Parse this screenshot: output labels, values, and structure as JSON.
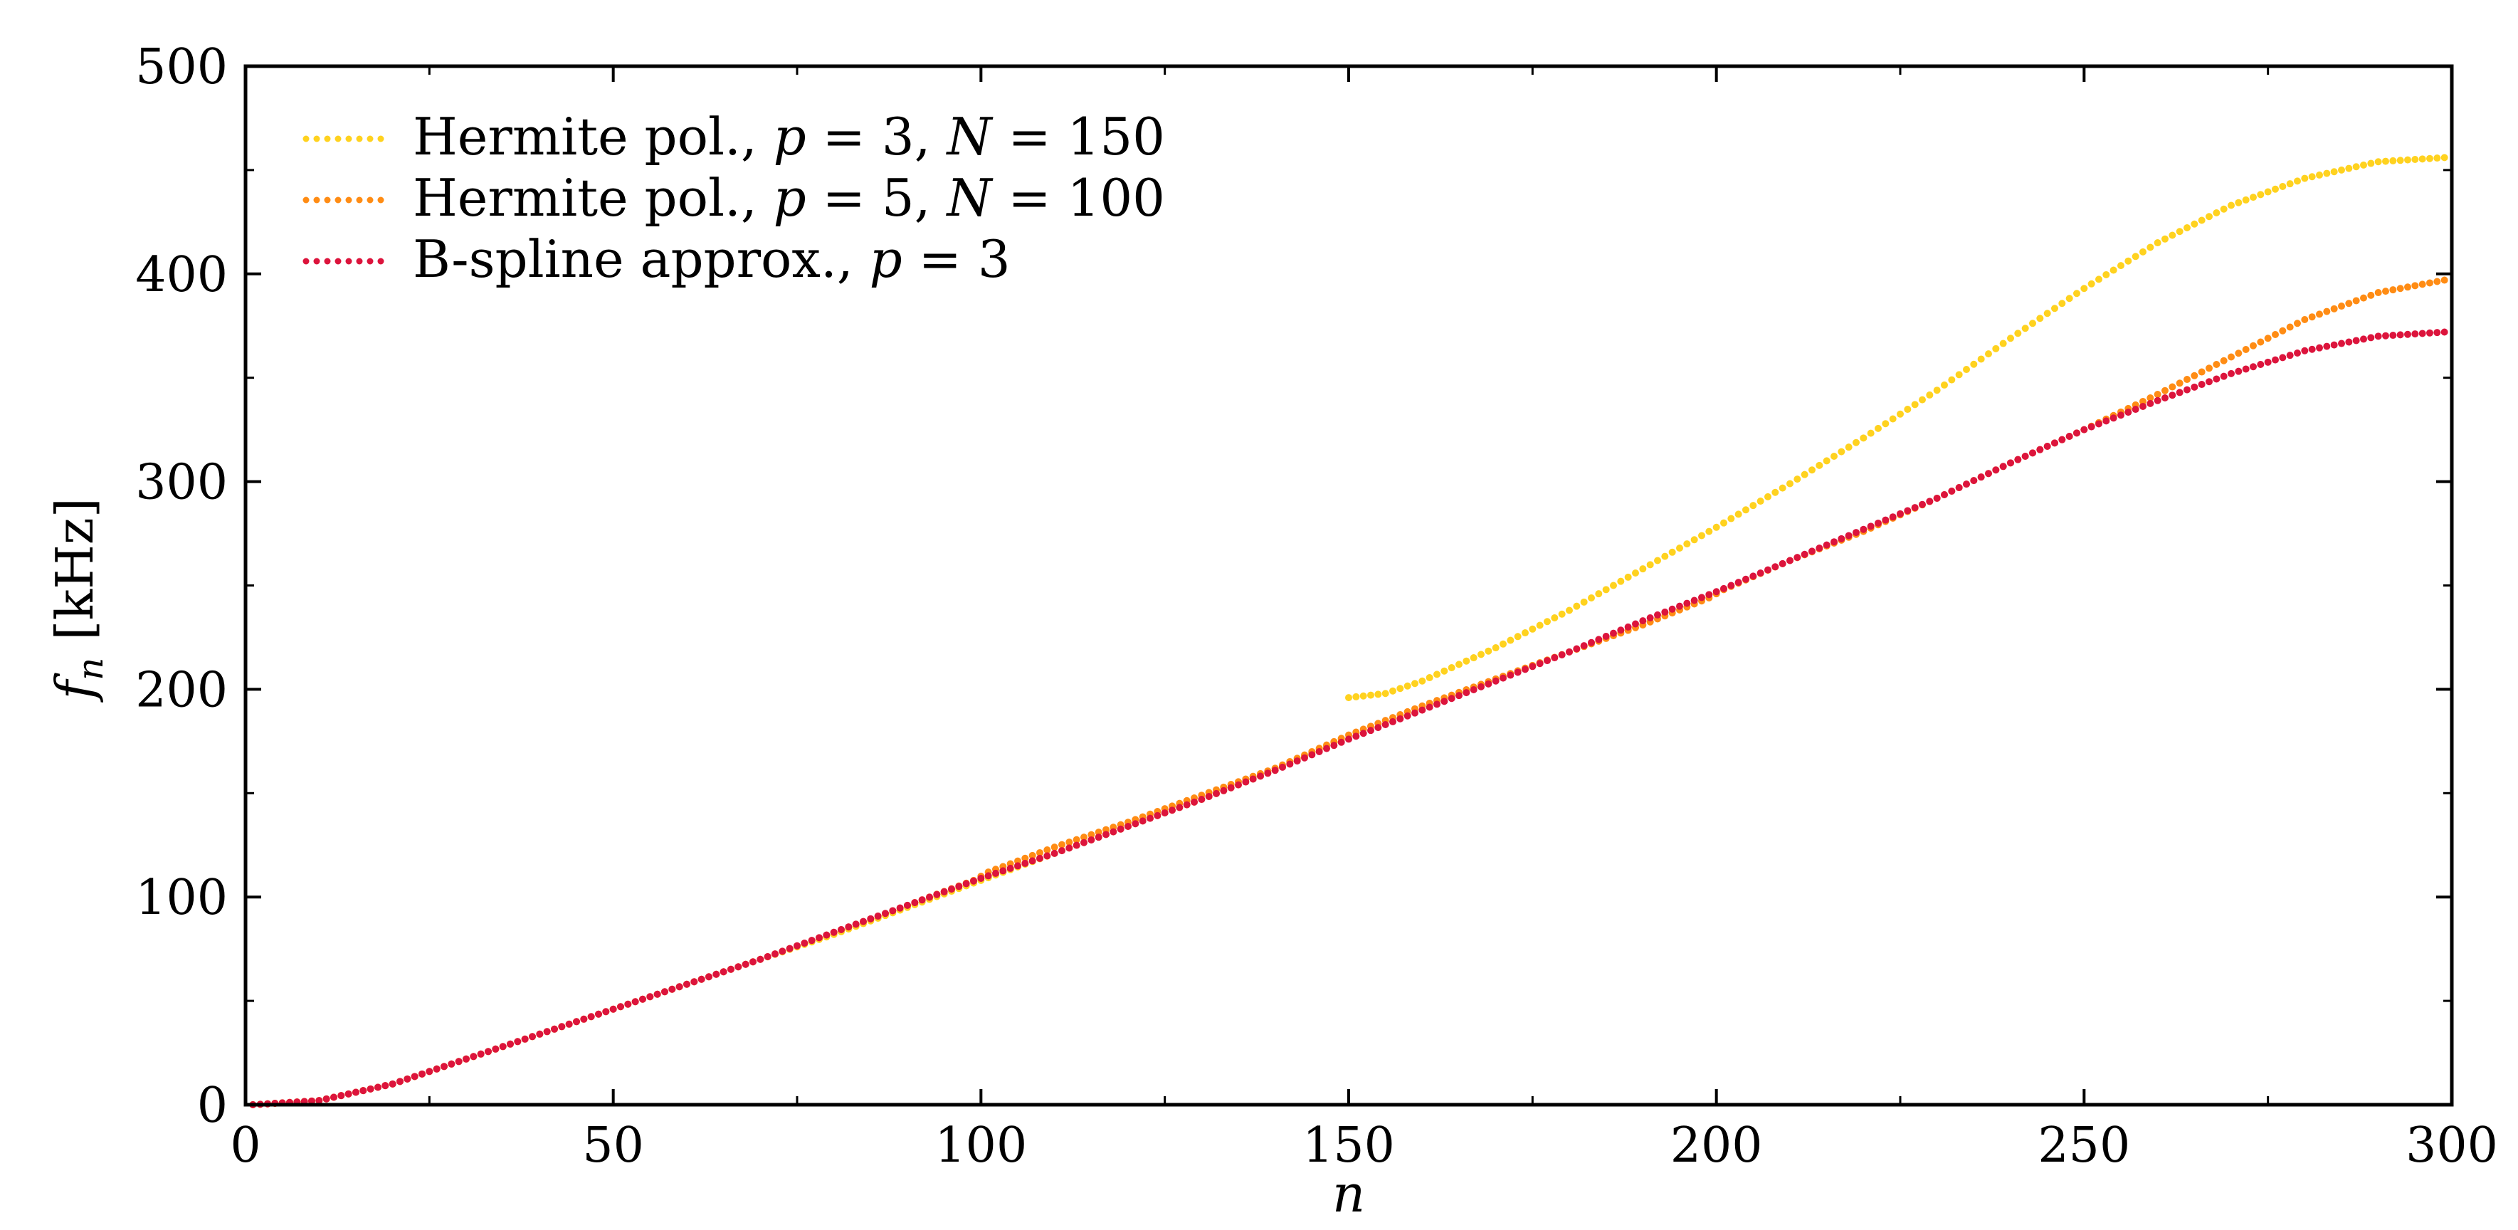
{
  "chart_data": {
    "type": "scatter",
    "xlabel": "n",
    "ylabel": "f",
    "ylabel_sub": "n",
    "ylabel_unit": "[kHz]",
    "xlim": [
      0,
      300
    ],
    "ylim": [
      0,
      500
    ],
    "x_ticks": [
      0,
      50,
      100,
      150,
      200,
      250,
      300
    ],
    "x_tick_labels": [
      "0",
      "50",
      "100",
      "150",
      "200",
      "250",
      "300"
    ],
    "y_ticks": [
      0,
      100,
      200,
      300,
      400,
      500
    ],
    "y_tick_labels": [
      "0",
      "100",
      "200",
      "300",
      "400",
      "500"
    ],
    "x_minor_step": 25,
    "y_minor_step": 50,
    "grid": false,
    "legend_position": "top-left",
    "series": [
      {
        "name": "Hermite pol., p = 3, N = 150",
        "color": "#ffd21f",
        "points": [
          [
            1,
            0
          ],
          [
            10,
            2
          ],
          [
            20,
            10
          ],
          [
            30,
            22
          ],
          [
            40,
            34
          ],
          [
            50,
            46
          ],
          [
            60,
            58
          ],
          [
            70,
            70
          ],
          [
            80,
            82
          ],
          [
            90,
            95
          ],
          [
            100,
            108
          ],
          [
            110,
            121
          ],
          [
            120,
            134
          ],
          [
            130,
            147
          ],
          [
            140,
            161
          ],
          [
            149,
            176
          ],
          [
            150,
            196
          ],
          [
            155,
            198
          ],
          [
            160,
            204
          ],
          [
            170,
            220
          ],
          [
            180,
            238
          ],
          [
            190,
            258
          ],
          [
            200,
            278
          ],
          [
            210,
            299
          ],
          [
            220,
            321
          ],
          [
            230,
            344
          ],
          [
            240,
            369
          ],
          [
            250,
            393
          ],
          [
            260,
            415
          ],
          [
            270,
            433
          ],
          [
            280,
            446
          ],
          [
            290,
            454
          ],
          [
            299,
            456
          ]
        ]
      },
      {
        "name": "Hermite pol., p = 5, N = 100",
        "color": "#ff8c14",
        "points": [
          [
            1,
            0
          ],
          [
            10,
            2
          ],
          [
            20,
            10
          ],
          [
            30,
            22
          ],
          [
            40,
            34
          ],
          [
            50,
            46
          ],
          [
            60,
            58
          ],
          [
            70,
            70
          ],
          [
            80,
            83
          ],
          [
            90,
            96
          ],
          [
            99,
            108
          ],
          [
            101,
            112
          ],
          [
            110,
            124
          ],
          [
            120,
            136
          ],
          [
            130,
            149
          ],
          [
            140,
            162
          ],
          [
            150,
            178
          ],
          [
            160,
            192
          ],
          [
            170,
            205
          ],
          [
            180,
            218
          ],
          [
            190,
            231
          ],
          [
            199,
            244
          ],
          [
            201,
            248
          ],
          [
            210,
            262
          ],
          [
            220,
            276
          ],
          [
            230,
            292
          ],
          [
            240,
            309
          ],
          [
            250,
            325
          ],
          [
            260,
            342
          ],
          [
            270,
            360
          ],
          [
            280,
            378
          ],
          [
            290,
            391
          ],
          [
            299,
            397
          ]
        ]
      },
      {
        "name": "B-spline approx., p = 3",
        "color": "#dc143c",
        "points": [
          [
            1,
            0
          ],
          [
            10,
            2
          ],
          [
            20,
            10
          ],
          [
            30,
            22
          ],
          [
            40,
            34
          ],
          [
            50,
            46
          ],
          [
            60,
            58
          ],
          [
            70,
            70
          ],
          [
            80,
            83
          ],
          [
            90,
            96
          ],
          [
            100,
            109
          ],
          [
            110,
            121
          ],
          [
            120,
            134
          ],
          [
            130,
            147
          ],
          [
            140,
            161
          ],
          [
            150,
            176
          ],
          [
            160,
            190
          ],
          [
            170,
            204
          ],
          [
            180,
            218
          ],
          [
            190,
            233
          ],
          [
            200,
            247
          ],
          [
            210,
            262
          ],
          [
            220,
            277
          ],
          [
            230,
            292
          ],
          [
            240,
            309
          ],
          [
            250,
            325
          ],
          [
            260,
            339
          ],
          [
            270,
            352
          ],
          [
            280,
            363
          ],
          [
            290,
            370
          ],
          [
            299,
            372
          ]
        ]
      }
    ],
    "legend_entries": [
      {
        "pre": "Hermite pol., ",
        "v1": "p",
        "eq1": " = 3, ",
        "v2": "N",
        "eq2": " = 150"
      },
      {
        "pre": "Hermite pol., ",
        "v1": "p",
        "eq1": " = 5, ",
        "v2": "N",
        "eq2": " = 100"
      },
      {
        "pre": "B-spline approx., ",
        "v1": "p",
        "eq1": " = 3",
        "v2": "",
        "eq2": ""
      }
    ]
  }
}
